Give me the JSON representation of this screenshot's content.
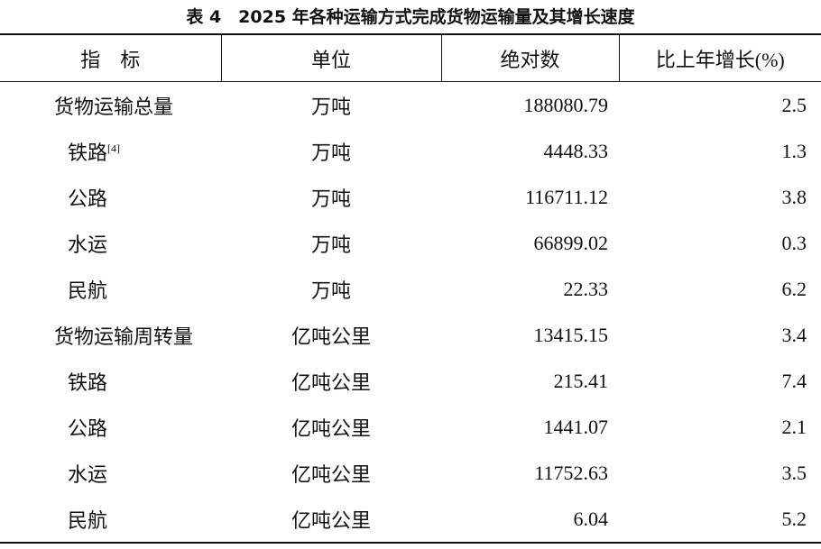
{
  "title": "表 4　2025 年各种运输方式完成货物运输量及其增长速度",
  "table": {
    "header": [
      "指　标",
      "单位",
      "绝对数",
      "比上年增长(%)"
    ],
    "rows": [
      {
        "name": "货物运输总量",
        "unit": "万吨",
        "value": "188080.79",
        "growth": "2.5"
      },
      {
        "name": "铁路",
        "note": "[4]",
        "unit": "万吨",
        "value": "4448.33",
        "growth": "1.3"
      },
      {
        "name": "公路",
        "unit": "万吨",
        "value": "116711.12",
        "growth": "3.8"
      },
      {
        "name": "水运",
        "unit": "万吨",
        "value": "66899.02",
        "growth": "0.3"
      },
      {
        "name": "民航",
        "unit": "万吨",
        "value": "22.33",
        "growth": "6.2"
      },
      {
        "name": "货物运输周转量",
        "unit": "亿吨公里",
        "value": "13415.15",
        "growth": "3.4"
      },
      {
        "name": "铁路",
        "unit": "亿吨公里",
        "value": "215.41",
        "growth": "7.4"
      },
      {
        "name": "公路",
        "unit": "亿吨公里",
        "value": "1441.07",
        "growth": "2.1"
      },
      {
        "name": "水运",
        "unit": "亿吨公里",
        "value": "11752.63",
        "growth": "3.5"
      },
      {
        "name": "民航",
        "unit": "亿吨公里",
        "value": "6.04",
        "growth": "5.2"
      }
    ]
  }
}
